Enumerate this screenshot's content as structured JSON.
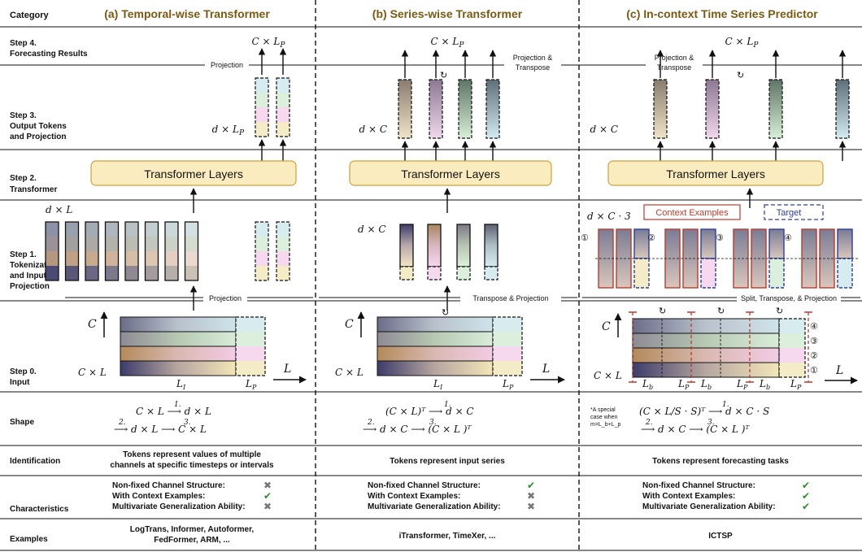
{
  "columns": {
    "category": "Category",
    "a": "(a) Temporal-wise Transformer",
    "b": "(b) Series-wise Transformer",
    "c": "(c) In-context Time Series Predictor"
  },
  "steps": {
    "s4": [
      "Step 4.",
      "Forecasting Results"
    ],
    "s3": [
      "Step 3.",
      "Output Tokens",
      "and Projection"
    ],
    "s2": [
      "Step 2.",
      "Transformer"
    ],
    "s1": [
      "Step 1.",
      "Tokenization",
      "and Input",
      "Projection"
    ],
    "s0": [
      "Step 0.",
      "Input"
    ],
    "shape": "Shape",
    "identification": "Identification",
    "characteristics": "Characteristics",
    "examples": "Examples"
  },
  "labels": {
    "transformer_layers": "Transformer Layers",
    "projection": "Projection",
    "projection_transpose_1": "Projection &",
    "projection_transpose_2": "Transpose",
    "transpose_projection": "Transpose & Projection",
    "split_transpose_projection": "Split, Transpose, & Projection",
    "context_examples": "Context Examples",
    "target": "Target",
    "special_case_1": "*A special",
    "special_case_2": "case when",
    "special_case_3": "m=L_b+L_p"
  },
  "math": {
    "out": "C × L",
    "out_sub": "P",
    "d_lp": "d × L",
    "d_lp_sub": "P",
    "d_c": "d × C",
    "d_l": "d × L",
    "d_c3": "d × C · 3",
    "C": "C",
    "L": "L",
    "CxL": "C × L",
    "LI": "L",
    "LI_sub": "I",
    "LP": "L",
    "LP_sub": "P",
    "Lb": "L",
    "Lb_sub": "b"
  },
  "shape": {
    "a_line1": "C × L ⟶ d × L",
    "a_line1_step": "1.",
    "a_line2": "⟶ d × L  ⟶ C × L",
    "a_line2_steps": [
      "2.",
      "3."
    ],
    "b_line1": "(C × L)ᵀ ⟶ d × C",
    "b_line1_step": "1.",
    "b_line2": "⟶ d × C ⟶ (C × L )ᵀ",
    "b_line2_steps": [
      "2.",
      "3."
    ],
    "c_line1": "(C × L/S · S)ᵀ ⟶ d × C · S",
    "c_line1_step": "1.",
    "c_line2": "⟶ d × C ⟶ (C × L )ᵀ",
    "c_line2_steps": [
      "2.",
      "3."
    ]
  },
  "identification": {
    "a": [
      "Tokens represent values of multiple",
      "channels at specific timesteps or intervals"
    ],
    "b": "Tokens represent input series",
    "c": "Tokens represent forecasting tasks"
  },
  "characteristics": {
    "items": [
      "Non-fixed Channel Structure:",
      "With Context Examples:",
      "Multivariate Generalization Ability:"
    ],
    "a": [
      "no",
      "yes",
      "no"
    ],
    "b": [
      "yes",
      "no",
      "no"
    ],
    "c": [
      "yes",
      "yes",
      "yes"
    ]
  },
  "examples": {
    "a": [
      "LogTrans, Informer, Autoformer,",
      "FedFormer, ARM, ..."
    ],
    "b": "iTransformer, TimeXer, ...",
    "c": "ICTSP"
  },
  "colors": {
    "column_header": "#7a5a12",
    "transformer_fill": "#fbecc0",
    "transformer_stroke": "#c9a23a",
    "context_border": "#c0392b",
    "target_border": "#2c3e9e",
    "check": "#2e8b2e",
    "cross": "#777777",
    "split_line": "#c0392b"
  },
  "circled_numbers": [
    "①",
    "②",
    "③",
    "④"
  ]
}
